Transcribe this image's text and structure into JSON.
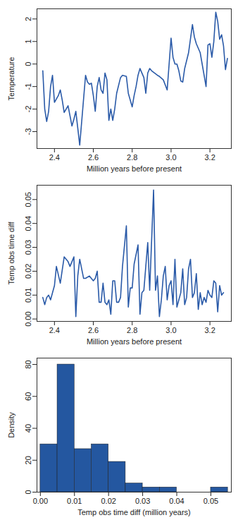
{
  "chart_data": [
    {
      "type": "line",
      "color": "#2a5aa8",
      "x_label": "Million years before present",
      "y_label": "Temperature",
      "x": [
        2.34,
        2.35,
        2.36,
        2.37,
        2.38,
        2.39,
        2.4,
        2.42,
        2.43,
        2.44,
        2.45,
        2.46,
        2.47,
        2.48,
        2.49,
        2.5,
        2.51,
        2.53,
        2.56,
        2.57,
        2.58,
        2.59,
        2.6,
        2.61,
        2.62,
        2.63,
        2.64,
        2.65,
        2.66,
        2.67,
        2.68,
        2.69,
        2.7,
        2.71,
        2.72,
        2.74,
        2.75,
        2.77,
        2.78,
        2.8,
        2.81,
        2.82,
        2.83,
        2.84,
        2.86,
        2.87,
        2.88,
        2.89,
        2.9,
        2.93,
        2.94,
        2.96,
        2.98,
        3.0,
        3.01,
        3.02,
        3.03,
        3.04,
        3.05,
        3.06,
        3.07,
        3.08,
        3.09,
        3.11,
        3.12,
        3.13,
        3.15,
        3.16,
        3.17,
        3.18,
        3.19,
        3.2,
        3.21,
        3.22,
        3.23,
        3.24,
        3.25,
        3.26,
        3.27,
        3.28,
        3.29
      ],
      "values": [
        -0.3,
        -2.0,
        -2.55,
        -2.1,
        -1.0,
        -0.5,
        -1.7,
        -1.4,
        -1.15,
        -1.6,
        -2.15,
        -2.0,
        -1.85,
        -2.3,
        -2.75,
        -2.45,
        -2.1,
        -3.6,
        -0.5,
        -0.8,
        -0.9,
        -0.85,
        -1.4,
        -2.1,
        -1.0,
        -0.6,
        -1.15,
        -1.3,
        -0.4,
        -0.7,
        -2.5,
        -2.0,
        -2.5,
        -2.0,
        -1.3,
        -0.6,
        -0.5,
        -0.55,
        -1.3,
        -1.9,
        -1.4,
        -1.0,
        -0.5,
        -0.2,
        -0.6,
        -1.3,
        -0.4,
        -0.2,
        -0.3,
        -0.5,
        -0.55,
        -0.7,
        -1.15,
        1.15,
        0.3,
        0.0,
        0.0,
        -0.3,
        -0.75,
        -0.8,
        -0.2,
        0.15,
        0.5,
        1.75,
        1.2,
        0.9,
        0.5,
        0.0,
        -0.5,
        -1.0,
        0.85,
        0.9,
        0.3,
        1.0,
        2.3,
        1.9,
        1.1,
        1.3,
        0.8,
        -0.25,
        0.25
      ],
      "xlim": [
        2.31,
        3.31
      ],
      "xticks": [
        2.4,
        2.6,
        2.8,
        {
          "value": 3,
          "label": "3.0"
        },
        3.2
      ],
      "ylim": [
        -3.75,
        2.45
      ],
      "yticks": [
        -3,
        -2,
        -1,
        0,
        1,
        2
      ]
    },
    {
      "type": "line",
      "color": "#2a5aa8",
      "x_label": "Million years before present",
      "y_label": "Temp obs time diff",
      "x": [
        2.34,
        2.35,
        2.36,
        2.37,
        2.38,
        2.4,
        2.41,
        2.43,
        2.45,
        2.47,
        2.48,
        2.5,
        2.51,
        2.52,
        2.53,
        2.55,
        2.56,
        2.58,
        2.6,
        2.61,
        2.62,
        2.63,
        2.64,
        2.65,
        2.66,
        2.67,
        2.68,
        2.69,
        2.7,
        2.71,
        2.72,
        2.73,
        2.74,
        2.75,
        2.77,
        2.78,
        2.79,
        2.8,
        2.81,
        2.83,
        2.84,
        2.85,
        2.86,
        2.87,
        2.88,
        2.89,
        2.91,
        2.92,
        2.93,
        2.94,
        2.95,
        2.96,
        2.97,
        2.98,
        2.99,
        3.0,
        3.01,
        3.02,
        3.03,
        3.04,
        3.05,
        3.06,
        3.07,
        3.08,
        3.09,
        3.1,
        3.11,
        3.12,
        3.13,
        3.14,
        3.15,
        3.16,
        3.17,
        3.18,
        3.19,
        3.2,
        3.21,
        3.22,
        3.23,
        3.24,
        3.25,
        3.26,
        3.27
      ],
      "values": [
        0.009,
        0.006,
        0.009,
        0.01,
        0.008,
        0.014,
        0.022,
        0.015,
        0.026,
        0.024,
        0.022,
        0.026,
        0.001,
        0.018,
        0.025,
        0.017,
        0.017,
        0.018,
        0.016,
        0.017,
        0.02,
        0.007,
        0.007,
        0.015,
        0.007,
        0.006,
        0.008,
        0.002,
        0.016,
        0.016,
        0.007,
        0.007,
        0.009,
        0.022,
        0.039,
        0.005,
        0.013,
        0.013,
        0.023,
        0.031,
        0.002,
        0.011,
        0.012,
        0.022,
        0.032,
        0.012,
        0.054,
        0.012,
        0.018,
        0.001,
        0.008,
        0.018,
        0.022,
        0.008,
        0.014,
        0.016,
        0.006,
        0.025,
        0.005,
        0.008,
        0.011,
        0.021,
        0.006,
        0.009,
        0.021,
        0.025,
        0.009,
        0.011,
        0.019,
        0.004,
        0.011,
        0.006,
        0.009,
        0.007,
        0.012,
        0.01,
        0.009,
        0.016,
        0.015,
        0.003,
        0.014,
        0.01,
        0.011
      ],
      "xlim": [
        2.31,
        3.31
      ],
      "xticks": [
        2.4,
        2.6,
        2.8,
        {
          "value": 3,
          "label": "3.0"
        },
        3.2
      ],
      "ylim": [
        -0.001,
        0.056
      ],
      "yticks": [
        {
          "value": 0,
          "label": "0.00"
        },
        {
          "value": 0.01,
          "label": "0.01"
        },
        {
          "value": 0.02,
          "label": "0.02"
        },
        {
          "value": 0.03,
          "label": "0.03"
        },
        {
          "value": 0.04,
          "label": "0.04"
        },
        {
          "value": 0.05,
          "label": "0.05"
        }
      ]
    },
    {
      "type": "histogram",
      "color": "#2457a0",
      "x_label": "Temp obs time diff (million years)",
      "y_label": "Density",
      "bins": [
        0,
        0.005,
        0.01,
        0.015,
        0.02,
        0.025,
        0.03,
        0.035,
        0.04,
        0.045,
        0.05,
        0.055
      ],
      "values": [
        30,
        80,
        27,
        30,
        19,
        5.5,
        3,
        3,
        0,
        0,
        3
      ],
      "xlim": [
        -0.001,
        0.056
      ],
      "xticks": [
        {
          "value": 0,
          "label": "0.00"
        },
        {
          "value": 0.01,
          "label": "0.01"
        },
        {
          "value": 0.02,
          "label": "0.02"
        },
        {
          "value": 0.03,
          "label": "0.03"
        },
        {
          "value": 0.04,
          "label": "0.04"
        },
        {
          "value": 0.05,
          "label": "0.05"
        }
      ],
      "ylim": [
        0,
        84
      ],
      "yticks": [
        0,
        20,
        40,
        60,
        80
      ]
    }
  ]
}
